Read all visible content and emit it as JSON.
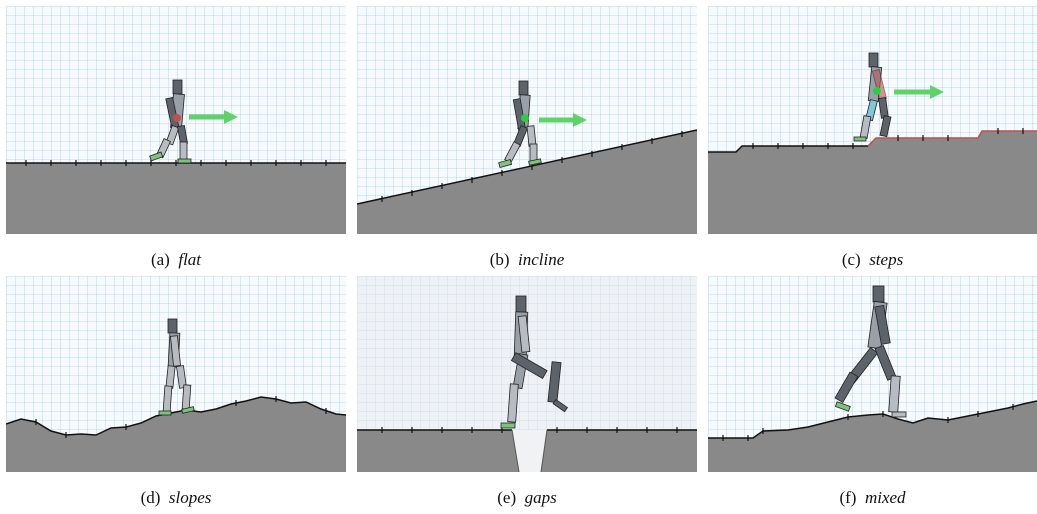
{
  "panels": [
    {
      "letter": "(a)",
      "name": "flat"
    },
    {
      "letter": "(b)",
      "name": "incline"
    },
    {
      "letter": "(c)",
      "name": "steps"
    },
    {
      "letter": "(d)",
      "name": "slopes"
    },
    {
      "letter": "(e)",
      "name": "gaps"
    },
    {
      "letter": "(f)",
      "name": "mixed"
    }
  ],
  "colors": {
    "grid": "#a9cfe6",
    "grid_major": "#8fbcd8",
    "sky": "#f6fafd",
    "ground": "#898989",
    "ground_edge": "#111111",
    "robot_light": "#b7bcc2",
    "robot_dark": "#5d636b",
    "foot": "#7dc47a",
    "arrow": "#5fd36a",
    "step_edge": "#c0504d"
  },
  "icons": [
    "walker-robot-icon",
    "direction-arrow-icon"
  ]
}
